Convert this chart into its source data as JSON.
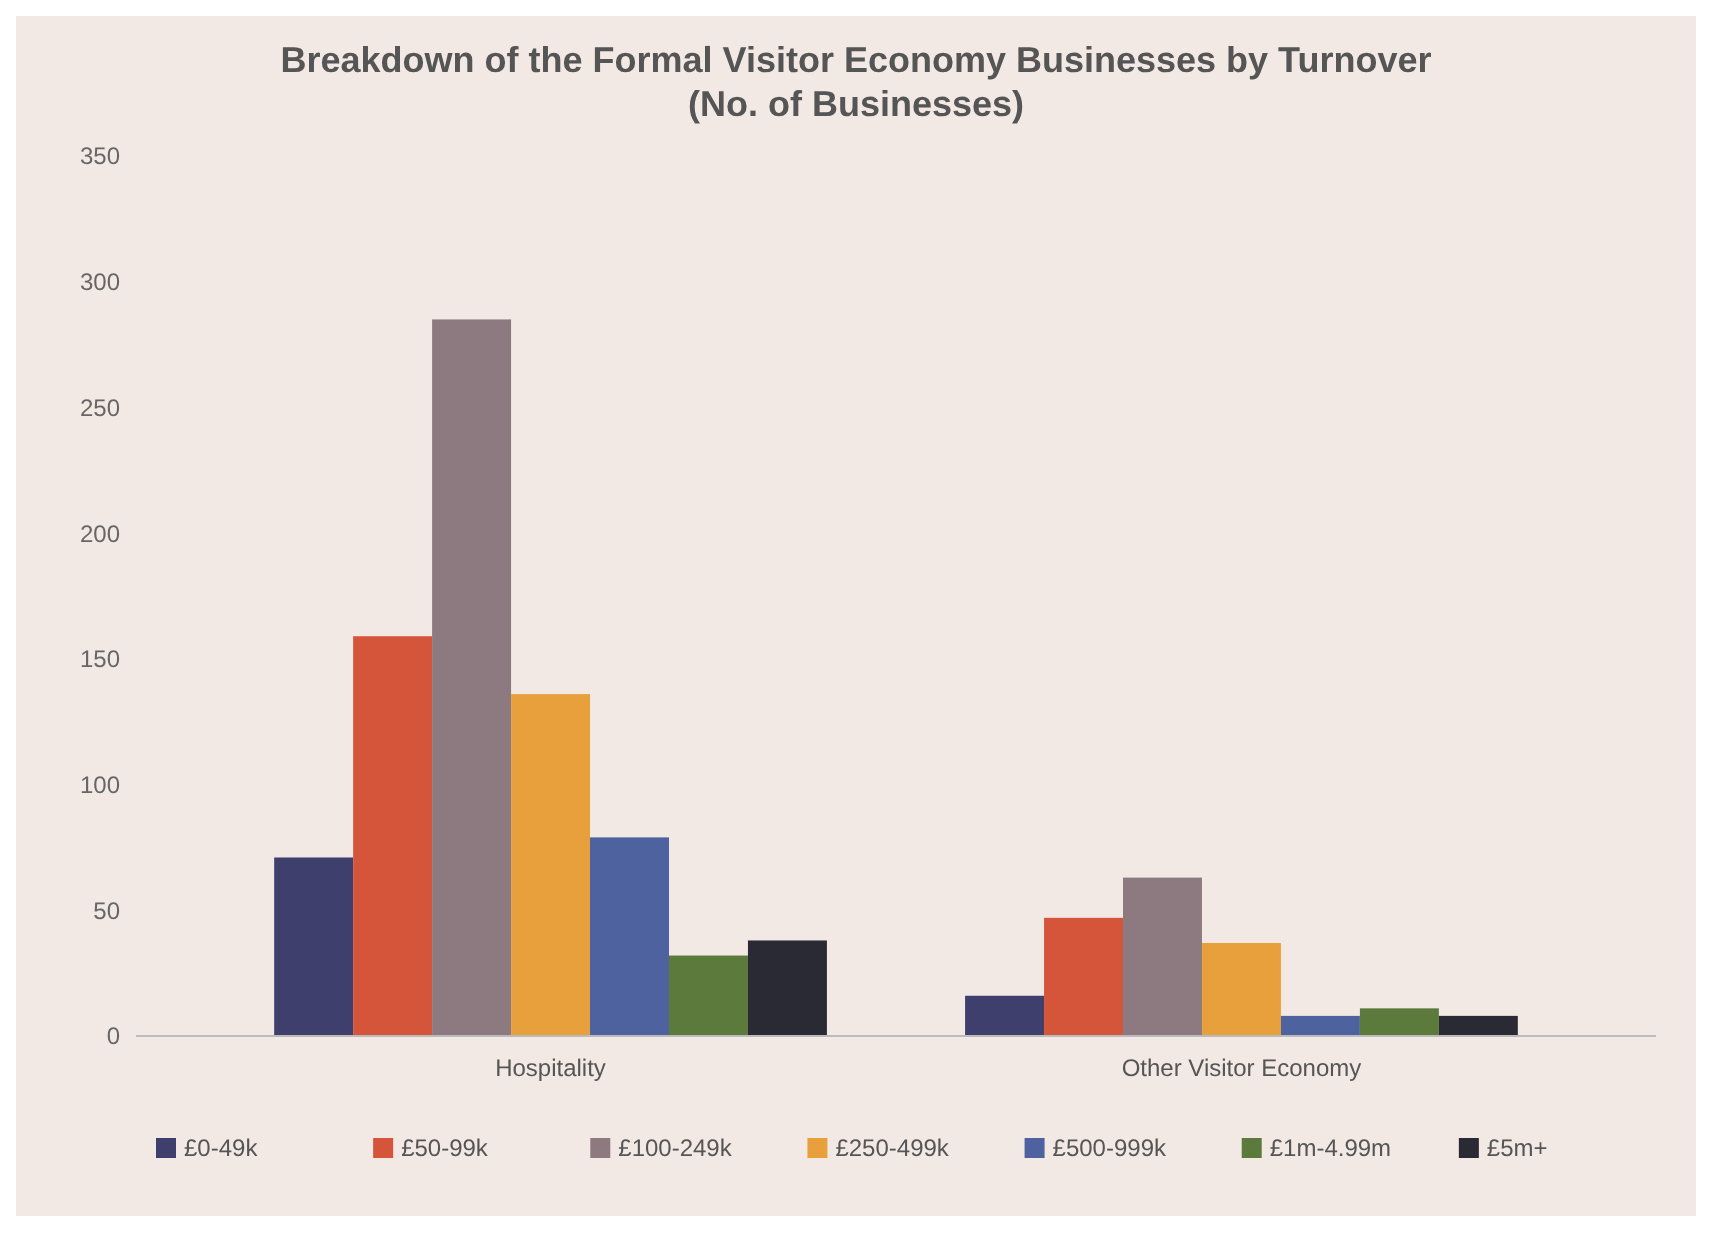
{
  "chart_data": {
    "type": "bar",
    "title": "Breakdown of the Formal Visitor Economy Businesses by Turnover (No. of Businesses)",
    "categories": [
      "Hospitality",
      "Other Visitor Economy"
    ],
    "series": [
      {
        "name": "£0-49k",
        "color": "#3f3f6e",
        "values": [
          71,
          16
        ]
      },
      {
        "name": "£50-99k",
        "color": "#d4553a",
        "values": [
          159,
          47
        ]
      },
      {
        "name": "£100-249k",
        "color": "#8c7a80",
        "values": [
          285,
          63
        ]
      },
      {
        "name": "£250-499k",
        "color": "#e8a03c",
        "values": [
          136,
          37
        ]
      },
      {
        "name": "£500-999k",
        "color": "#4e62a0",
        "values": [
          79,
          8
        ]
      },
      {
        "name": "£1m-4.99m",
        "color": "#5c7a3c",
        "values": [
          32,
          11
        ]
      },
      {
        "name": "£5m+",
        "color": "#2a2a34",
        "values": [
          38,
          8
        ]
      }
    ],
    "ylim": [
      0,
      350
    ],
    "yticks": [
      0,
      50,
      100,
      150,
      200,
      250,
      300,
      350
    ],
    "grid": false,
    "legend": "bottom"
  }
}
